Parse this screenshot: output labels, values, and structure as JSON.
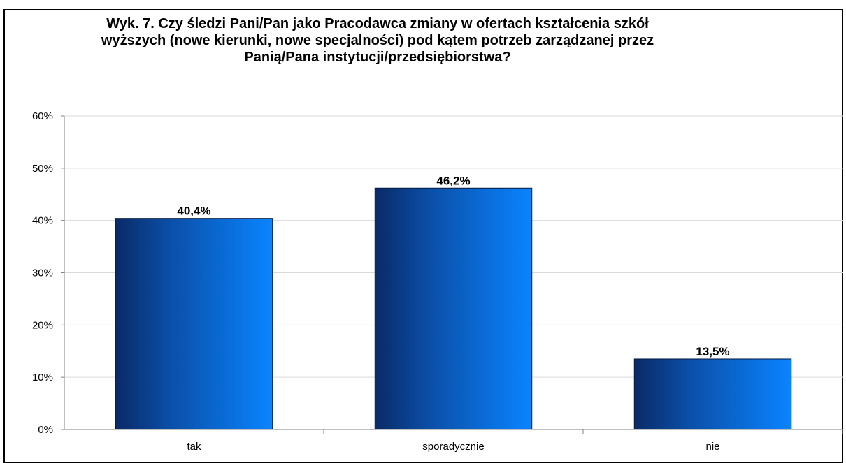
{
  "chart_data": {
    "type": "bar",
    "title_lines": [
      "Wyk. 7. Czy śledzi Pani/Pan jako Pracodawca zmiany w ofertach kształcenia szkół",
      "wyższych (nowe kierunki, nowe specjalności) pod kątem potrzeb zarządzanej przez",
      "Panią/Pana instytucji/przedsiębiorstwa?"
    ],
    "categories": [
      "tak",
      "sporadycznie",
      "nie"
    ],
    "values": [
      40.4,
      46.2,
      13.5
    ],
    "value_labels": [
      "40,4%",
      "46,2%",
      "13,5%"
    ],
    "ylim": [
      0,
      60
    ],
    "yticks": [
      0,
      10,
      20,
      30,
      40,
      50,
      60
    ],
    "ytick_labels": [
      "0%",
      "10%",
      "20%",
      "30%",
      "40%",
      "50%",
      "60%"
    ],
    "grid": true,
    "legend": "none",
    "colors": {
      "bar_dark": "#0a2a66",
      "bar_light": "#0a84ff",
      "grid": "#d9d9d9",
      "axis": "#808080"
    }
  }
}
